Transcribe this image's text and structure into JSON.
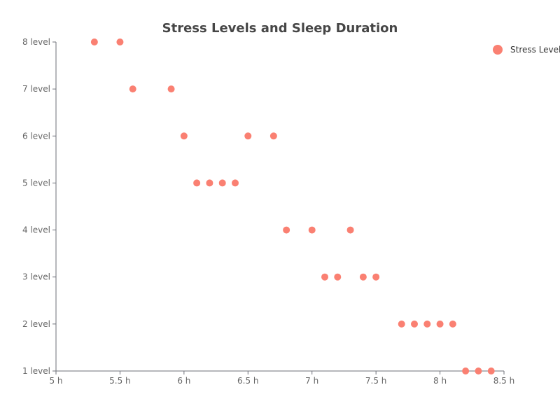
{
  "chart_data": {
    "type": "scatter",
    "title": "Stress Levels and Sleep Duration",
    "xlabel": "",
    "ylabel": "",
    "xlim": [
      5,
      8.5
    ],
    "ylim": [
      1,
      8
    ],
    "x_ticks": [
      5,
      5.5,
      6,
      6.5,
      7,
      7.5,
      8,
      8.5
    ],
    "y_ticks": [
      1,
      2,
      3,
      4,
      5,
      6,
      7,
      8
    ],
    "x_tick_labels": [
      "5 h",
      "5.5 h",
      "6 h",
      "6.5 h",
      "7 h",
      "7.5 h",
      "8 h",
      "8.5 h"
    ],
    "y_tick_labels": [
      "1 level",
      "2 level",
      "3 level",
      "4 level",
      "5 level",
      "6 level",
      "7 level",
      "8 level"
    ],
    "grid": false,
    "legend_position": "top-right",
    "series": [
      {
        "name": "Stress Level",
        "color": "#fa8072",
        "points": [
          {
            "x": 5.3,
            "y": 8
          },
          {
            "x": 5.5,
            "y": 8
          },
          {
            "x": 5.6,
            "y": 7
          },
          {
            "x": 5.9,
            "y": 7
          },
          {
            "x": 6.0,
            "y": 6
          },
          {
            "x": 6.5,
            "y": 6
          },
          {
            "x": 6.7,
            "y": 6
          },
          {
            "x": 6.1,
            "y": 5
          },
          {
            "x": 6.2,
            "y": 5
          },
          {
            "x": 6.3,
            "y": 5
          },
          {
            "x": 6.4,
            "y": 5
          },
          {
            "x": 6.8,
            "y": 4
          },
          {
            "x": 7.0,
            "y": 4
          },
          {
            "x": 7.3,
            "y": 4
          },
          {
            "x": 7.1,
            "y": 3
          },
          {
            "x": 7.2,
            "y": 3
          },
          {
            "x": 7.4,
            "y": 3
          },
          {
            "x": 7.5,
            "y": 3
          },
          {
            "x": 7.7,
            "y": 2
          },
          {
            "x": 7.8,
            "y": 2
          },
          {
            "x": 7.9,
            "y": 2
          },
          {
            "x": 8.0,
            "y": 2
          },
          {
            "x": 8.1,
            "y": 2
          },
          {
            "x": 8.2,
            "y": 1
          },
          {
            "x": 8.3,
            "y": 1
          },
          {
            "x": 8.4,
            "y": 1
          }
        ]
      }
    ]
  }
}
